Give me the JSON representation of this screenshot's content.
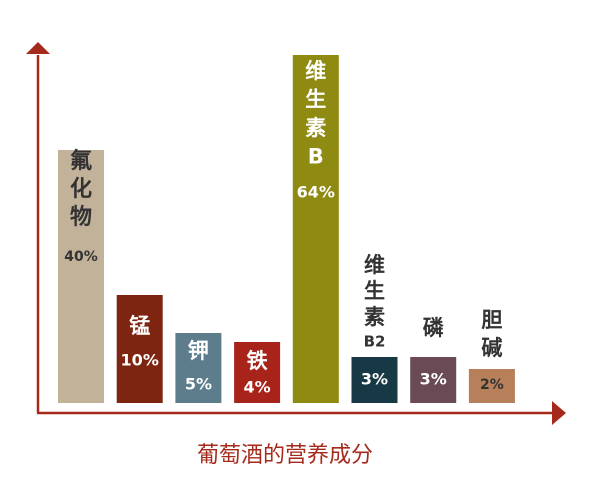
{
  "chart_data": {
    "type": "bar",
    "title": "",
    "xlabel": "葡萄酒的营养成分",
    "ylabel": "",
    "unit": "%",
    "grid": false,
    "legend": "none",
    "axis_color": "#a52a1c",
    "categories": [
      "氟化物",
      "锰",
      "钾",
      "铁",
      "维生素B",
      "维生素B2",
      "磷",
      "胆碱"
    ],
    "values": [
      40,
      10,
      5,
      4,
      64,
      3,
      3,
      2
    ],
    "value_labels": [
      "40%",
      "10%",
      "5%",
      "4%",
      "64%",
      "3%",
      "3%",
      "2%"
    ],
    "colors": [
      "#c2b29a",
      "#7e2511",
      "#5d7c8c",
      "#a8241a",
      "#8f8a12",
      "#173845",
      "#6a4a55",
      "#b7805a"
    ]
  }
}
